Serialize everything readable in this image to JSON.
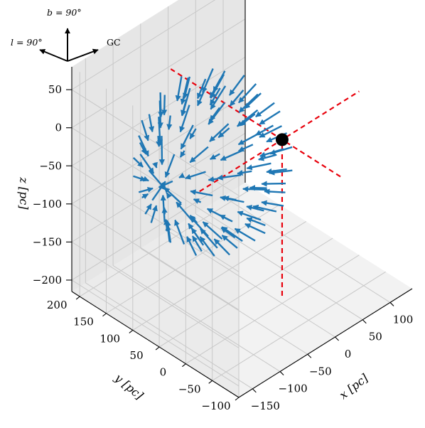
{
  "chart_data": {
    "type": "quiver3d",
    "title": "",
    "xlabel": "x [pc]",
    "ylabel": "y [pc]",
    "zlabel": "z [pc]",
    "xlim": [
      -175,
      140
    ],
    "ylim": [
      -100,
      215
    ],
    "zlim": [
      -215,
      80
    ],
    "xticks": [
      "−150",
      "−100",
      "−50",
      "0",
      "50",
      "100"
    ],
    "yticks": [
      "−100",
      "−50",
      "0",
      "50",
      "100",
      "150",
      "200"
    ],
    "zticks": [
      "−200",
      "−150",
      "−100",
      "−50",
      "0",
      "50"
    ],
    "xtick_values": [
      -150,
      -100,
      -50,
      0,
      50,
      100
    ],
    "ytick_values": [
      -100,
      -50,
      0,
      50,
      100,
      150,
      200
    ],
    "ztick_values": [
      -200,
      -150,
      -100,
      -50,
      0,
      50
    ],
    "grid": true,
    "orientation": {
      "b_label": "b = 90°",
      "l_label": "l = 90°",
      "gc_label": "GC"
    },
    "sun_position": [
      0,
      0,
      0
    ],
    "sphere_center": [
      -20,
      110,
      -70
    ],
    "sphere_radius": 105,
    "arrow_color": "#1f77b4",
    "crosshair_color": "#e8000b",
    "sun_color": "#000000"
  }
}
